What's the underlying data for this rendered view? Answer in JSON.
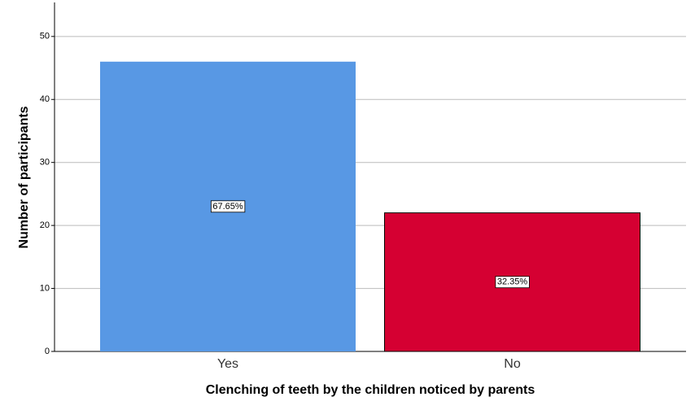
{
  "chart_data": {
    "type": "bar",
    "x_label": "Clenching of teeth by the children noticed by parents",
    "y_label": "Number of participants",
    "categories": [
      "Yes",
      "No"
    ],
    "values": [
      46,
      22
    ],
    "percent_labels": [
      "67.65%",
      "32.35%"
    ],
    "colors": [
      "#5898e4",
      "#d50032"
    ],
    "ylim": [
      0,
      55.4
    ],
    "yticks": [
      0,
      10,
      20,
      30,
      40,
      50
    ],
    "grid": true
  }
}
